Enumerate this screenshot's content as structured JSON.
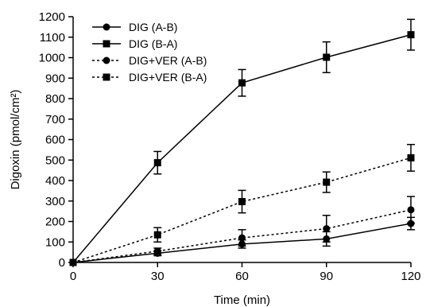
{
  "chart_data": {
    "type": "line",
    "title": "",
    "xlabel": "Time (min)",
    "ylabel": "Digoxin (pmol/cm²)",
    "x": [
      0,
      30,
      60,
      90,
      120
    ],
    "xlim": [
      0,
      120
    ],
    "ylim": [
      0,
      1200
    ],
    "xticks": [
      "0",
      "30",
      "60",
      "90",
      "120"
    ],
    "yticks": [
      "0",
      "100",
      "200",
      "300",
      "400",
      "500",
      "600",
      "700",
      "800",
      "900",
      "1000",
      "1100",
      "1200"
    ],
    "grid": false,
    "legend_position": "top-left",
    "series": [
      {
        "name": "DIG (A-B)",
        "marker": "circle",
        "line": "solid",
        "values": [
          0,
          45,
          90,
          115,
          190
        ],
        "errors": [
          0,
          12,
          20,
          35,
          30
        ]
      },
      {
        "name": "DIG (B-A)",
        "marker": "square",
        "line": "solid",
        "values": [
          0,
          487,
          877,
          1002,
          1112
        ],
        "errors": [
          0,
          55,
          65,
          75,
          75
        ]
      },
      {
        "name": "DIG+VER (A-B)",
        "marker": "circle",
        "line": "dashed",
        "values": [
          0,
          55,
          120,
          165,
          257
        ],
        "errors": [
          0,
          15,
          40,
          65,
          65
        ]
      },
      {
        "name": "DIG+VER (B-A)",
        "marker": "square",
        "line": "dashed",
        "values": [
          0,
          135,
          297,
          392,
          511
        ],
        "errors": [
          0,
          35,
          55,
          50,
          65
        ]
      }
    ]
  }
}
